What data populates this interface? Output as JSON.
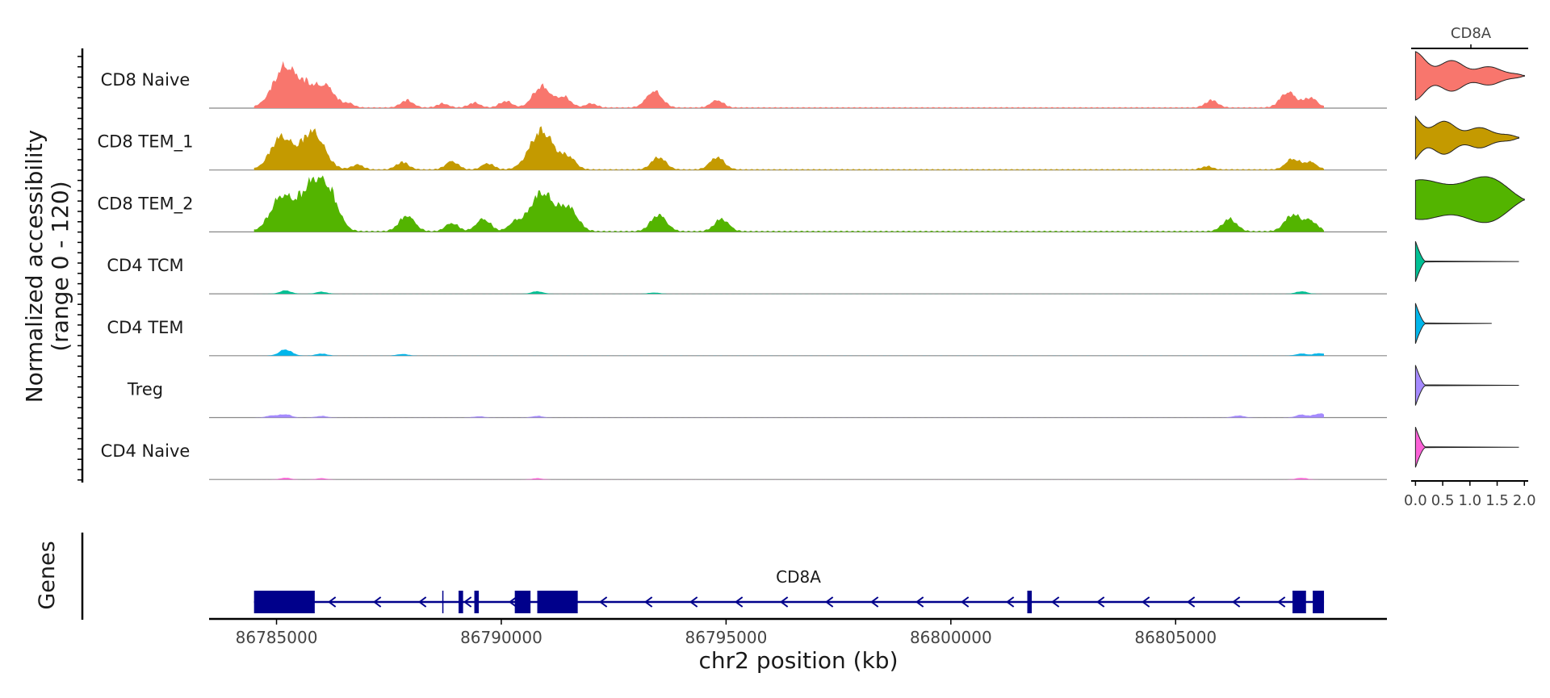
{
  "chart_data": {
    "type": "area",
    "ylabel": "Normalized accessibility",
    "yrange_label": "(range 0 - 120)",
    "xlabel": "chr2 position (kb)",
    "xlim": [
      86783500,
      86809700
    ],
    "ylim": [
      0,
      120
    ],
    "x_ticks": [
      {
        "value": 86785000,
        "label": "86785000"
      },
      {
        "value": 86790000,
        "label": "86790000"
      },
      {
        "value": 86795000,
        "label": "86795000"
      },
      {
        "value": 86800000,
        "label": "86800000"
      },
      {
        "value": 86805000,
        "label": "86805000"
      }
    ],
    "track_region": [
      86784500,
      86808300
    ],
    "series": [
      {
        "name": "CD8 Naive",
        "color": "#F8766D",
        "peaks": [
          [
            86785200,
            100
          ],
          [
            86785700,
            40
          ],
          [
            86786100,
            52
          ],
          [
            86786600,
            10
          ],
          [
            86787900,
            18
          ],
          [
            86788700,
            10
          ],
          [
            86789400,
            12
          ],
          [
            86790100,
            16
          ],
          [
            86790900,
            52
          ],
          [
            86791400,
            25
          ],
          [
            86792000,
            10
          ],
          [
            86793400,
            40
          ],
          [
            86794800,
            18
          ],
          [
            86805800,
            18
          ],
          [
            86807500,
            38
          ],
          [
            86808000,
            24
          ]
        ]
      },
      {
        "name": "CD8 TEM_1",
        "color": "#C49A00",
        "peaks": [
          [
            86785100,
            78
          ],
          [
            86785800,
            92
          ],
          [
            86786800,
            12
          ],
          [
            86787800,
            18
          ],
          [
            86788900,
            20
          ],
          [
            86789700,
            15
          ],
          [
            86790900,
            95
          ],
          [
            86791500,
            28
          ],
          [
            86793500,
            30
          ],
          [
            86794800,
            30
          ],
          [
            86805700,
            8
          ],
          [
            86807600,
            26
          ],
          [
            86808000,
            18
          ]
        ]
      },
      {
        "name": "CD8 TEM_2",
        "color": "#53B400",
        "peaks": [
          [
            86785100,
            80
          ],
          [
            86785800,
            115
          ],
          [
            86786200,
            60
          ],
          [
            86787900,
            38
          ],
          [
            86788900,
            20
          ],
          [
            86789600,
            30
          ],
          [
            86790300,
            20
          ],
          [
            86790900,
            95
          ],
          [
            86791500,
            55
          ],
          [
            86793500,
            40
          ],
          [
            86794900,
            30
          ],
          [
            86806200,
            30
          ],
          [
            86807600,
            40
          ],
          [
            86808000,
            25
          ]
        ]
      },
      {
        "name": "CD4 TCM",
        "color": "#00C094",
        "peaks": [
          [
            86785200,
            8
          ],
          [
            86786000,
            5
          ],
          [
            86790800,
            6
          ],
          [
            86793400,
            3
          ],
          [
            86807800,
            6
          ]
        ]
      },
      {
        "name": "CD4 TEM",
        "color": "#00B6EB",
        "peaks": [
          [
            86785200,
            15
          ],
          [
            86786000,
            5
          ],
          [
            86787800,
            4
          ],
          [
            86807800,
            5
          ],
          [
            86808200,
            6
          ]
        ]
      },
      {
        "name": "Treg",
        "color": "#A58AFF",
        "peaks": [
          [
            86784900,
            5
          ],
          [
            86785200,
            8
          ],
          [
            86786000,
            4
          ],
          [
            86789500,
            3
          ],
          [
            86790800,
            4
          ],
          [
            86806400,
            5
          ],
          [
            86807800,
            7
          ],
          [
            86808200,
            10
          ]
        ]
      },
      {
        "name": "CD4 Naive",
        "color": "#FB61D7",
        "peaks": [
          [
            86785200,
            4
          ],
          [
            86786000,
            3
          ],
          [
            86790800,
            3
          ],
          [
            86807800,
            4
          ]
        ]
      }
    ],
    "violin": {
      "title": "CD8A",
      "x_ticks": [
        {
          "value": 0.0,
          "label": "0.0"
        },
        {
          "value": 0.5,
          "label": "0.5"
        },
        {
          "value": 1.0,
          "label": "1.0"
        },
        {
          "value": 1.5,
          "label": "1.5"
        },
        {
          "value": 2.0,
          "label": "2.0"
        }
      ],
      "xlim": [
        -0.05,
        2.1
      ],
      "max_values": [
        2.0,
        1.9,
        2.0,
        1.9,
        1.4,
        1.9,
        1.9
      ]
    },
    "genes": {
      "label": "Genes",
      "gene_name": "CD8A",
      "color": "#00008B",
      "strand": "-",
      "span": [
        86784500,
        86808300
      ],
      "exons": [
        [
          86784500,
          86785850
        ],
        [
          86789050,
          86789150
        ],
        [
          86789400,
          86789500
        ],
        [
          86790300,
          86790650
        ],
        [
          86790800,
          86791700
        ],
        [
          86801700,
          86801800
        ],
        [
          86807600,
          86807900
        ],
        [
          86808050,
          86808300
        ]
      ],
      "tick_mark": 86788700
    }
  }
}
